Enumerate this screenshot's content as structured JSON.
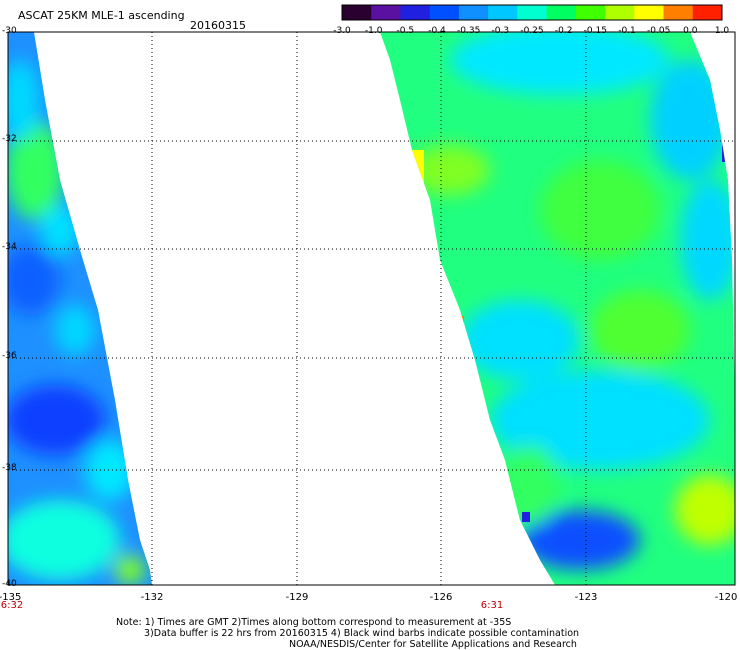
{
  "header": {
    "title": "ASCAT 25KM MLE-1 ascending",
    "date": "20160315"
  },
  "colorbar": {
    "labels": [
      "-3.0",
      "-1.0",
      "-0.5",
      "-0.4",
      "-0.35",
      "-0.3",
      "-0.25",
      "-0.2",
      "-0.15",
      "-0.1",
      "-0.05",
      "0.0",
      "1.0"
    ],
    "colors": [
      "#2a0030",
      "#5a10a0",
      "#2020e0",
      "#0050ff",
      "#1090ff",
      "#00c8ff",
      "#00ffd0",
      "#00ff60",
      "#40ff00",
      "#b0ff00",
      "#ffff00",
      "#ff8000",
      "#ff2000"
    ]
  },
  "map": {
    "lat_labels": [
      "-30",
      "-32",
      "-34",
      "-36",
      "-38",
      "-40"
    ],
    "lon_labels": [
      "-135",
      "-132",
      "-129",
      "-126",
      "-123",
      "-120"
    ],
    "time_labels": [
      "6:32",
      "6:31"
    ]
  },
  "notes": {
    "line1": "Note: 1) Times are GMT 2)Times along bottom correspond to measurement at -35S",
    "line2": "3)Data buffer is 22 hrs from 20160315 4) Black wind barbs indicate possible contamination",
    "line3": "NOAA/NESDIS/Center for Satellite Applications and Research"
  }
}
